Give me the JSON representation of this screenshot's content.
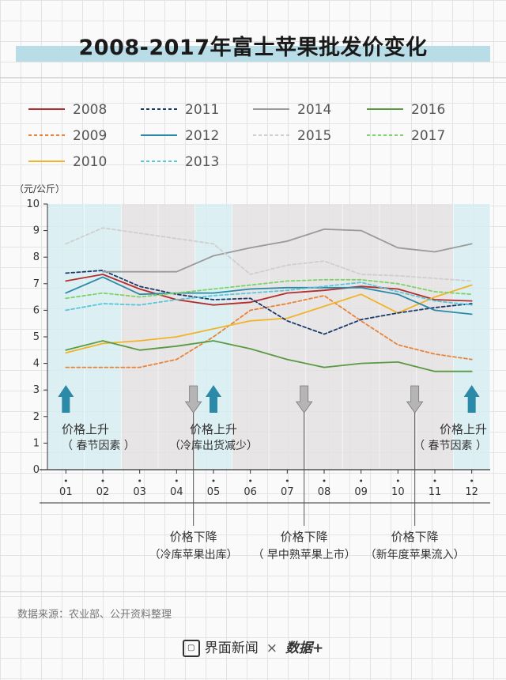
{
  "title": "2008-2017年富士苹果批发价变化",
  "source": "数据来源：农业部、公开资料整理",
  "footer": {
    "brand1": "界面新闻",
    "sep": "×",
    "brand2": "数据+"
  },
  "chart_data": {
    "type": "line",
    "title": "2008-2017年富士苹果批发价变化",
    "ylabel": "（元/公斤）",
    "ylim": [
      0,
      10
    ],
    "yticks": [
      "0",
      "1",
      "2",
      "3",
      "4",
      "5",
      "6",
      "7",
      "8",
      "9",
      "10"
    ],
    "categories": [
      "01",
      "02",
      "03",
      "04",
      "05",
      "06",
      "07",
      "08",
      "09",
      "10",
      "11",
      "12"
    ],
    "grid": true,
    "legend": "top",
    "series": [
      {
        "name": "2008",
        "color": "#b22d2d",
        "dash": false,
        "values": [
          7.1,
          7.35,
          6.8,
          6.4,
          6.2,
          6.3,
          6.65,
          6.75,
          6.9,
          6.8,
          6.4,
          6.35
        ]
      },
      {
        "name": "2009",
        "color": "#e8833a",
        "dash": true,
        "values": [
          3.85,
          3.85,
          3.85,
          4.15,
          5.0,
          6.0,
          6.25,
          6.55,
          5.6,
          4.7,
          4.35,
          4.15
        ]
      },
      {
        "name": "2010",
        "color": "#f0b429",
        "dash": false,
        "values": [
          4.4,
          4.75,
          4.85,
          5.0,
          5.3,
          5.6,
          5.7,
          6.15,
          6.6,
          5.9,
          6.5,
          6.95
        ]
      },
      {
        "name": "2011",
        "color": "#1c3a6b",
        "dash": true,
        "values": [
          7.4,
          7.5,
          6.9,
          6.6,
          6.4,
          6.45,
          5.6,
          5.1,
          5.65,
          5.9,
          6.1,
          6.25
        ]
      },
      {
        "name": "2012",
        "color": "#2b8aa8",
        "dash": false,
        "values": [
          6.65,
          7.25,
          6.6,
          6.65,
          6.65,
          6.8,
          6.85,
          6.85,
          6.85,
          6.6,
          6.0,
          5.85
        ]
      },
      {
        "name": "2013",
        "color": "#5cc6d9",
        "dash": true,
        "values": [
          6.0,
          6.25,
          6.2,
          6.4,
          6.55,
          6.65,
          6.75,
          6.9,
          7.05,
          6.7,
          6.35,
          6.2
        ]
      },
      {
        "name": "2014",
        "color": "#9a9a9a",
        "dash": false,
        "values": [
          null,
          7.45,
          7.45,
          7.45,
          8.05,
          8.35,
          8.6,
          9.05,
          9.0,
          8.35,
          8.2,
          8.5
        ]
      },
      {
        "name": "2015",
        "color": "#cfcfcf",
        "dash": true,
        "values": [
          8.5,
          9.1,
          8.9,
          8.7,
          8.5,
          7.35,
          7.7,
          7.85,
          7.35,
          7.3,
          7.2,
          7.1
        ]
      },
      {
        "name": "2016",
        "color": "#5a9a43",
        "dash": false,
        "values": [
          4.5,
          4.85,
          4.5,
          4.65,
          4.85,
          4.55,
          4.15,
          3.85,
          4.0,
          4.05,
          3.7,
          3.7
        ]
      },
      {
        "name": "2017",
        "color": "#7dd36a",
        "dash": true,
        "values": [
          6.45,
          6.65,
          6.5,
          6.65,
          6.8,
          6.95,
          7.1,
          7.15,
          7.15,
          7.0,
          6.7,
          6.6
        ]
      }
    ],
    "annotations": [
      {
        "month": "01",
        "direction": "up",
        "label": "价格上升",
        "note": "（ 春节因素 ）"
      },
      {
        "month": "04",
        "direction": "down",
        "label": "价格下降",
        "note": "（冷库苹果出库）"
      },
      {
        "month": "05",
        "direction": "up",
        "label": "价格上升",
        "note": "（冷库出货减少）"
      },
      {
        "month": "07",
        "direction": "down",
        "label": "价格下降",
        "note": "（ 早中熟苹果上市）"
      },
      {
        "month": "10",
        "direction": "down",
        "label": "价格下降",
        "note": "（新年度苹果流入）"
      },
      {
        "month": "12",
        "direction": "up",
        "label": "价格上升",
        "note": "（ 春节因素 ）"
      }
    ],
    "colors": {
      "arrow_up": "#2b8aa8",
      "arrow_down": "#b5b5b5",
      "band_blue": "#d6ecf1",
      "band_gray": "#e3e1e1"
    }
  }
}
